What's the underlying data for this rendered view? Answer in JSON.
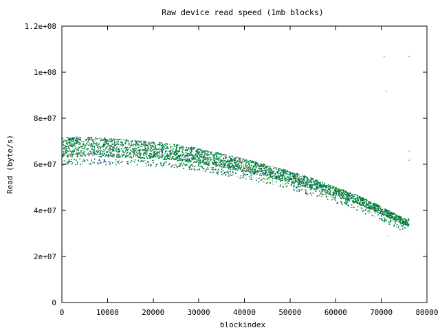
{
  "chart_data": {
    "type": "scatter",
    "title": "Raw device read speed (1mb blocks)",
    "xlabel": "blockindex",
    "ylabel": "Read (byte/s)",
    "xlim": [
      0,
      80000
    ],
    "ylim": [
      0,
      120000000
    ],
    "x_ticks": [
      {
        "value": 0,
        "label": "0"
      },
      {
        "value": 10000,
        "label": "10000"
      },
      {
        "value": 20000,
        "label": "20000"
      },
      {
        "value": 30000,
        "label": "30000"
      },
      {
        "value": 40000,
        "label": "40000"
      },
      {
        "value": 50000,
        "label": "50000"
      },
      {
        "value": 60000,
        "label": "60000"
      },
      {
        "value": 70000,
        "label": "70000"
      },
      {
        "value": 80000,
        "label": "80000"
      }
    ],
    "y_ticks": [
      {
        "value": 0,
        "label": "0"
      },
      {
        "value": 20000000,
        "label": "2e+07"
      },
      {
        "value": 40000000,
        "label": "4e+07"
      },
      {
        "value": 60000000,
        "label": "6e+07"
      },
      {
        "value": 80000000,
        "label": "8e+07"
      },
      {
        "value": 100000000,
        "label": "1e+08"
      },
      {
        "value": 120000000,
        "label": "1.2e+08"
      }
    ],
    "grid": false,
    "legend": "none",
    "colors": [
      "#008040",
      "#ff0000",
      "#0000ff",
      "#ff00ff",
      "#00c0c0",
      "#c0a000",
      "#a0a0a0",
      "#00a000"
    ],
    "series": [
      {
        "color": "#008040",
        "description_points": [
          [
            0,
            67000000
          ],
          [
            5000,
            67500000
          ],
          [
            10000,
            67000000
          ],
          [
            15000,
            66500000
          ],
          [
            20000,
            66000000
          ],
          [
            25000,
            65000000
          ],
          [
            30000,
            63500000
          ],
          [
            35000,
            61500000
          ],
          [
            40000,
            59500000
          ],
          [
            45000,
            57000000
          ],
          [
            50000,
            54500000
          ],
          [
            55000,
            51500000
          ],
          [
            60000,
            48000000
          ],
          [
            65000,
            44500000
          ],
          [
            70000,
            40000000
          ],
          [
            75000,
            35000000
          ]
        ]
      }
    ],
    "outliers": [
      [
        70500,
        107000000
      ],
      [
        71000,
        92000000
      ],
      [
        76000,
        107000000
      ],
      [
        71500,
        29000000
      ],
      [
        76000,
        66000000
      ],
      [
        76000,
        62000000
      ]
    ]
  }
}
